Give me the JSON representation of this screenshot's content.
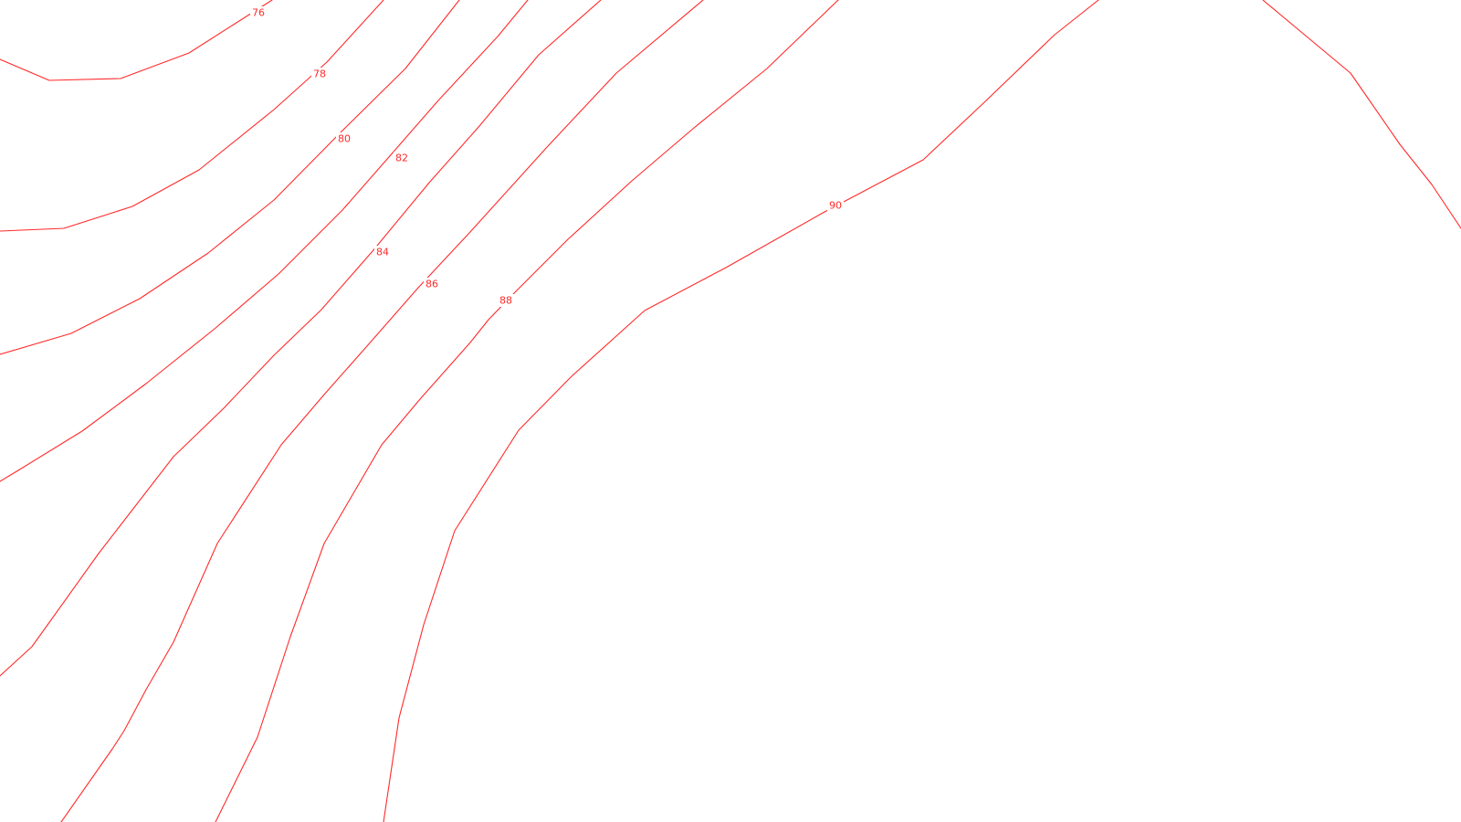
{
  "map": {
    "line_color": "#ff2a2a",
    "background": "#ffffff",
    "contour_labels": [
      "76",
      "78",
      "80",
      "82",
      "84",
      "86",
      "88",
      "90"
    ]
  }
}
